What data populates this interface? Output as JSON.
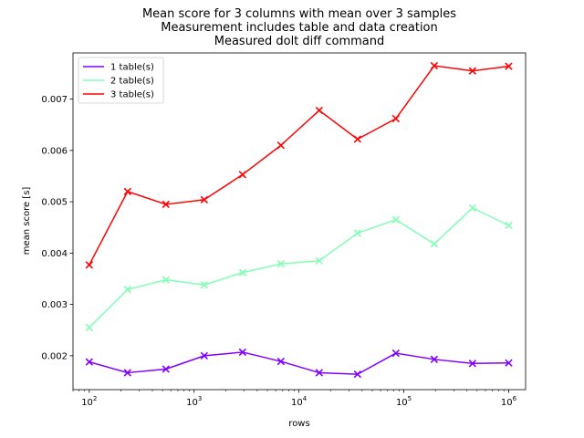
{
  "chart_data": {
    "type": "line",
    "title_lines": [
      "Mean score for 3 columns with mean over 3 samples",
      "Measurement includes table and data creation",
      "Measured dolt diff command"
    ],
    "xlabel": "rows",
    "ylabel": "mean score [s]",
    "xscale": "log",
    "xlim": [
      70,
      1450000
    ],
    "ylim": [
      0.00134,
      0.0079
    ],
    "xticks": [
      {
        "value": 100,
        "base": "10",
        "exp": "2"
      },
      {
        "value": 1000,
        "base": "10",
        "exp": "3"
      },
      {
        "value": 10000,
        "base": "10",
        "exp": "4"
      },
      {
        "value": 100000,
        "base": "10",
        "exp": "5"
      },
      {
        "value": 1000000,
        "base": "10",
        "exp": "6"
      }
    ],
    "yticks": [
      {
        "value": 0.002,
        "label": "0.002"
      },
      {
        "value": 0.003,
        "label": "0.003"
      },
      {
        "value": 0.004,
        "label": "0.004"
      },
      {
        "value": 0.005,
        "label": "0.005"
      },
      {
        "value": 0.006,
        "label": "0.006"
      },
      {
        "value": 0.007,
        "label": "0.007"
      }
    ],
    "legend_position": "upper-left",
    "grid": false,
    "x": [
      100,
      232,
      538,
      1250,
      2900,
      6730,
      15600,
      36200,
      84000,
      195000,
      452000,
      1000000
    ],
    "series": [
      {
        "name": "1 table(s)",
        "color": "#8000ff",
        "values": [
          0.00188,
          0.00167,
          0.00174,
          0.002,
          0.00207,
          0.00189,
          0.00167,
          0.00164,
          0.00205,
          0.00193,
          0.00185,
          0.00186
        ]
      },
      {
        "name": "2 table(s)",
        "color": "#80ffb4",
        "values": [
          0.00255,
          0.00329,
          0.00348,
          0.00338,
          0.00362,
          0.00379,
          0.00385,
          0.00439,
          0.00465,
          0.00418,
          0.00488,
          0.00454
        ]
      },
      {
        "name": "3 table(s)",
        "color": "#ff0000",
        "values": [
          0.00377,
          0.0052,
          0.00495,
          0.00504,
          0.00553,
          0.0061,
          0.00678,
          0.00622,
          0.00662,
          0.00765,
          0.00755,
          0.00764
        ]
      }
    ]
  }
}
